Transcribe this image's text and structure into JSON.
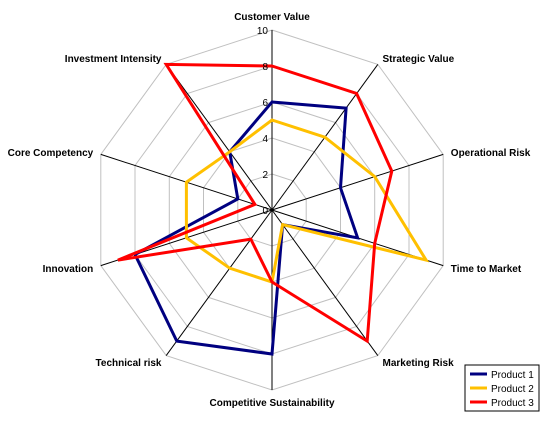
{
  "chart_data": {
    "type": "radar",
    "axes": [
      "Customer Value",
      "Strategic Value",
      "Operational Risk",
      "Time to Market",
      "Marketing Risk",
      "Competitive Sustainability",
      "Technical risk",
      "Innovation",
      "Core Competency",
      "Investment Intensity"
    ],
    "ticks": [
      "0",
      "2",
      "4",
      "6",
      "8",
      "10"
    ],
    "range": [
      0,
      10
    ],
    "grid": true,
    "legend_position": "bottom-right",
    "series": [
      {
        "name": "Product 1",
        "color": "#000080",
        "values": [
          6,
          7,
          4,
          5,
          1,
          8,
          9,
          8,
          2,
          4
        ]
      },
      {
        "name": "Product 2",
        "color": "#FFC000",
        "values": [
          5,
          5,
          6,
          9,
          1,
          4,
          4,
          5,
          5,
          4
        ]
      },
      {
        "name": "Product 3",
        "color": "#FF0000",
        "values": [
          8,
          8,
          7,
          6,
          9,
          4,
          2,
          9,
          1,
          10
        ]
      }
    ]
  }
}
